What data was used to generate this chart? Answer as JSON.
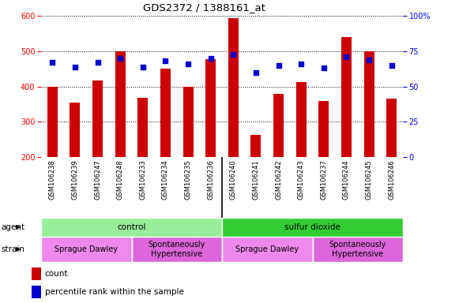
{
  "title": "GDS2372 / 1388161_at",
  "samples": [
    "GSM106238",
    "GSM106239",
    "GSM106247",
    "GSM106248",
    "GSM106233",
    "GSM106234",
    "GSM106235",
    "GSM106236",
    "GSM106240",
    "GSM106241",
    "GSM106242",
    "GSM106243",
    "GSM106237",
    "GSM106244",
    "GSM106245",
    "GSM106246"
  ],
  "counts": [
    400,
    355,
    418,
    500,
    368,
    450,
    400,
    478,
    595,
    263,
    380,
    413,
    358,
    540,
    500,
    365
  ],
  "percentile_ranks": [
    67,
    64,
    67,
    70,
    64,
    68,
    66,
    70,
    73,
    60,
    65,
    66,
    63,
    71,
    69,
    65
  ],
  "ymin": 200,
  "ymax": 600,
  "yticks_left": [
    200,
    300,
    400,
    500,
    600
  ],
  "yticks_right": [
    0,
    25,
    50,
    75,
    100
  ],
  "y2labels": [
    "0",
    "25",
    "50",
    "75",
    "100%"
  ],
  "bar_color": "#cc0000",
  "dot_color": "#0000cc",
  "agent_groups": [
    {
      "label": "control",
      "start": 0,
      "end": 8,
      "color": "#99ee99"
    },
    {
      "label": "sulfur dioxide",
      "start": 8,
      "end": 16,
      "color": "#33cc33"
    }
  ],
  "strain_groups": [
    {
      "label": "Sprague Dawley",
      "start": 0,
      "end": 4,
      "color": "#ee88ee"
    },
    {
      "label": "Spontaneously\nHypertensive",
      "start": 4,
      "end": 8,
      "color": "#dd66dd"
    },
    {
      "label": "Sprague Dawley",
      "start": 8,
      "end": 12,
      "color": "#ee88ee"
    },
    {
      "label": "Spontaneously\nHypertensive",
      "start": 12,
      "end": 16,
      "color": "#dd66dd"
    }
  ],
  "tick_area_bg": "#cccccc",
  "bar_width": 0.45,
  "figwidth": 5.81,
  "figheight": 3.84,
  "dpi": 100
}
